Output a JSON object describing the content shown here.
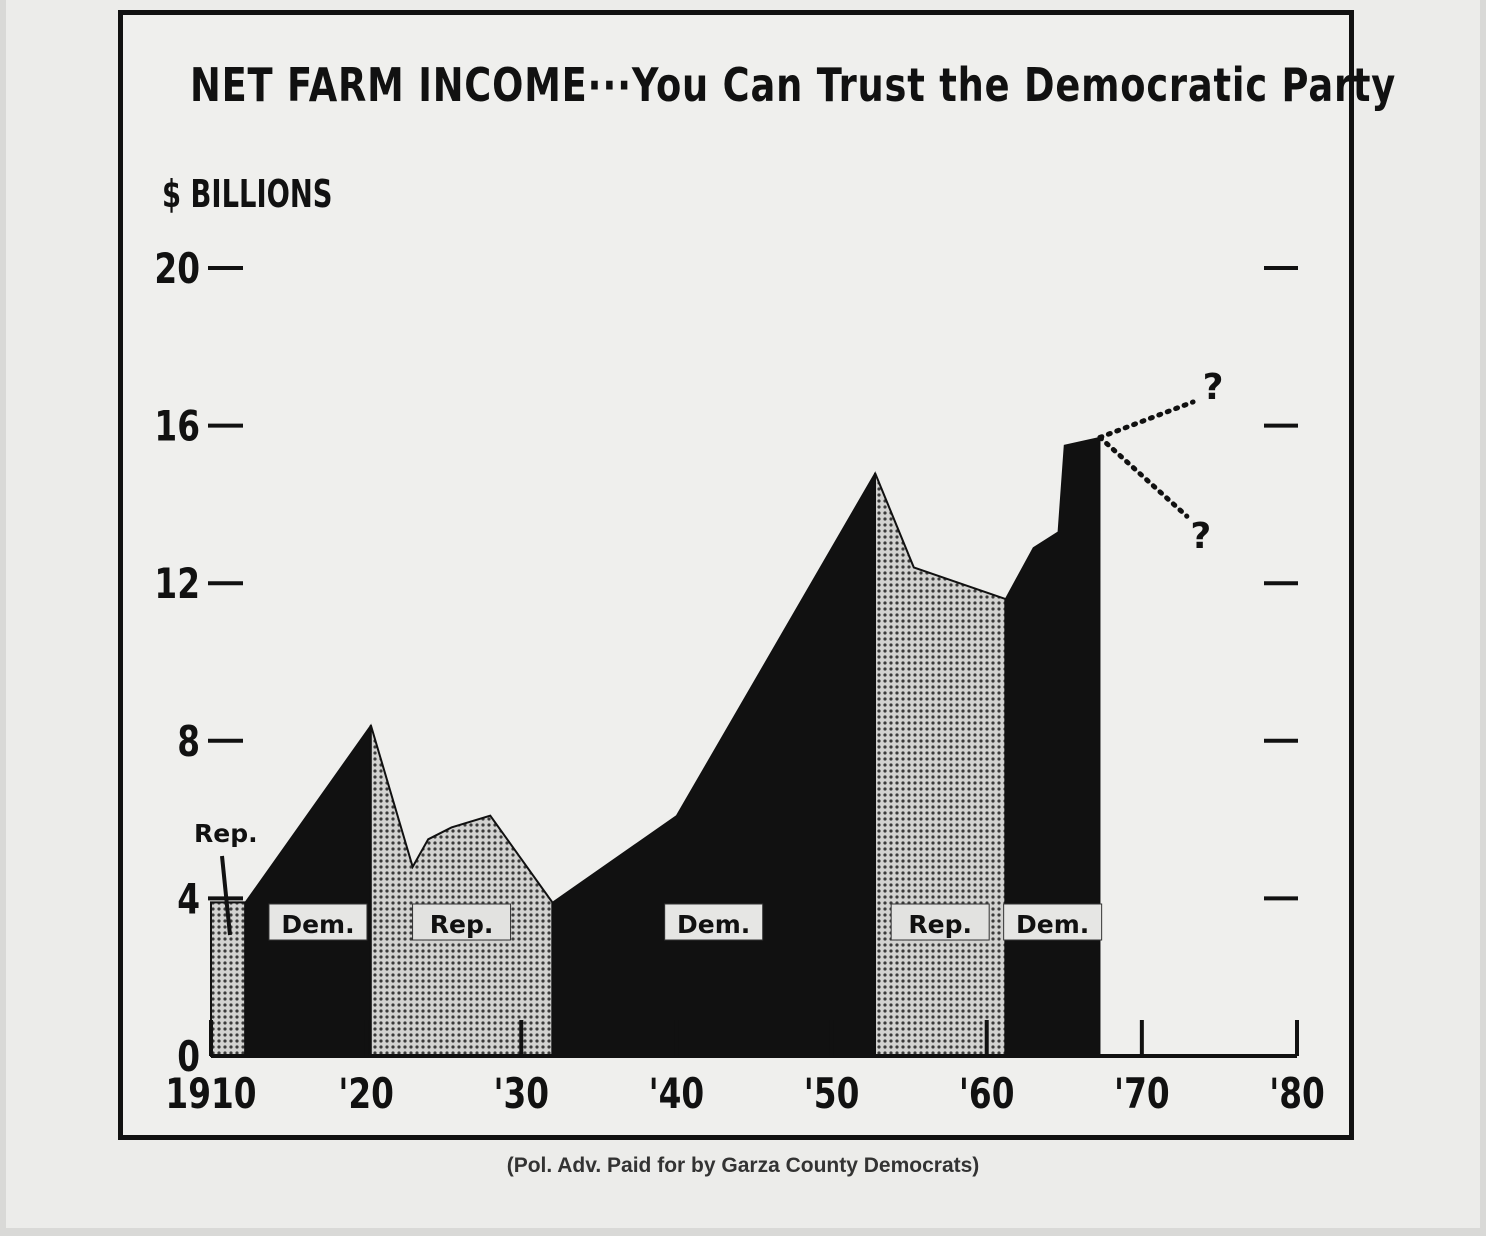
{
  "chart_data": {
    "type": "area",
    "title": "NET FARM INCOME···You Can Trust the Democratic Party",
    "ylabel": "$ BILLIONS",
    "xlabel": "",
    "xlim": [
      1910,
      1980
    ],
    "ylim": [
      0,
      20
    ],
    "x_ticks": [
      {
        "value": 1910,
        "label": "1910"
      },
      {
        "value": 1920,
        "label": "'20"
      },
      {
        "value": 1930,
        "label": "'30"
      },
      {
        "value": 1940,
        "label": "'40"
      },
      {
        "value": 1950,
        "label": "'50"
      },
      {
        "value": 1960,
        "label": "'60"
      },
      {
        "value": 1970,
        "label": "'70"
      },
      {
        "value": 1980,
        "label": "'80"
      }
    ],
    "y_ticks": [
      {
        "value": 0,
        "label": "0"
      },
      {
        "value": 4,
        "label": "4"
      },
      {
        "value": 8,
        "label": "8"
      },
      {
        "value": 12,
        "label": "12"
      },
      {
        "value": 16,
        "label": "16"
      },
      {
        "value": 20,
        "label": "20"
      }
    ],
    "series": [
      {
        "label": "Rep.",
        "fill": "#b8b8b8",
        "points": [
          [
            1910,
            3.9
          ],
          [
            1912.2,
            3.9
          ]
        ]
      },
      {
        "label": "Dem.",
        "fill": "#111111",
        "points": [
          [
            1912.2,
            3.9
          ],
          [
            1920.3,
            8.4
          ]
        ]
      },
      {
        "label": "Rep.",
        "fill": "#b8b8b8",
        "points": [
          [
            1920.3,
            8.4
          ],
          [
            1923,
            4.8
          ],
          [
            1924,
            5.5
          ],
          [
            1925.5,
            5.8
          ],
          [
            1928,
            6.1
          ],
          [
            1932,
            3.9
          ]
        ]
      },
      {
        "label": "Dem.",
        "fill": "#111111",
        "points": [
          [
            1932,
            3.9
          ],
          [
            1940,
            6.1
          ],
          [
            1952.8,
            14.8
          ]
        ]
      },
      {
        "label": "Rep.",
        "fill": "#b8b8b8",
        "points": [
          [
            1952.8,
            14.8
          ],
          [
            1955.3,
            12.4
          ],
          [
            1961.2,
            11.6
          ]
        ]
      },
      {
        "label": "Dem.",
        "fill": "#111111",
        "points": [
          [
            1961.2,
            11.6
          ],
          [
            1963,
            12.9
          ],
          [
            1964.6,
            13.3
          ],
          [
            1965,
            15.5
          ],
          [
            1967.3,
            15.7
          ]
        ]
      }
    ],
    "projections": [
      {
        "label": "?",
        "points": [
          [
            1967.3,
            15.7
          ],
          [
            1973.3,
            16.6
          ]
        ]
      },
      {
        "label": "?",
        "points": [
          [
            1967.3,
            15.7
          ],
          [
            1972.9,
            13.7
          ]
        ]
      }
    ]
  },
  "footnote": "(Pol. Adv. Paid for by Garza County Democrats)"
}
